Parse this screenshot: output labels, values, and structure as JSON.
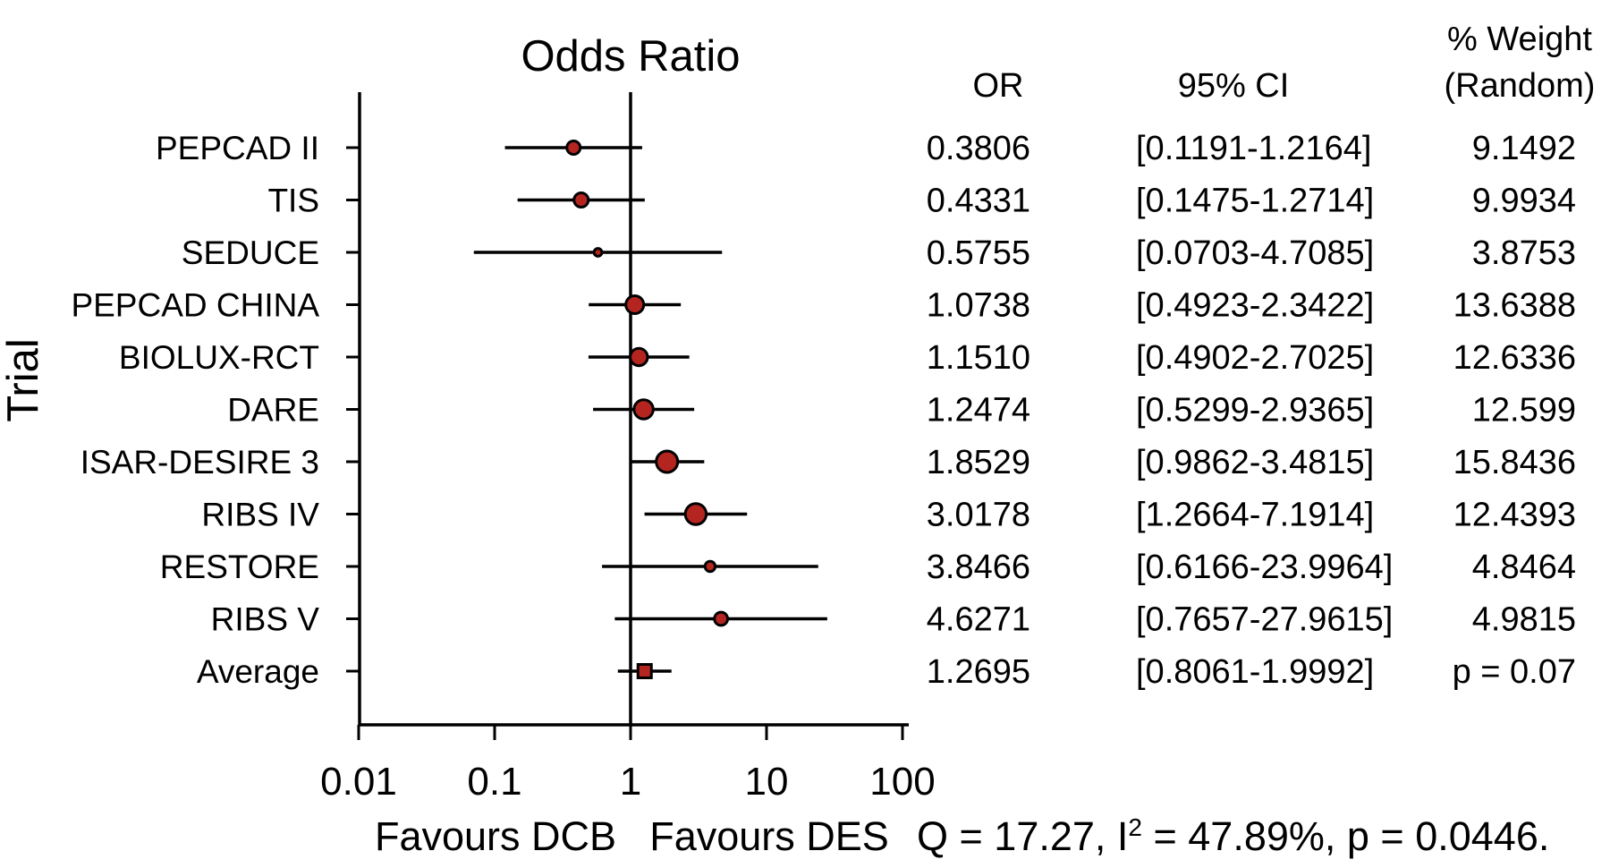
{
  "chart_data": {
    "type": "scatter",
    "subtype": "forest-plot",
    "title": "Odds Ratio",
    "y_axis_label": "Trial",
    "x_axis": {
      "scale": "log10",
      "range": [
        0.01,
        100
      ],
      "tick_values": [
        0.01,
        0.1,
        1,
        10,
        100
      ],
      "tick_labels": [
        "0.01",
        "0.1",
        "1",
        "10",
        "100"
      ],
      "reference_line_at": 1
    },
    "direction_labels": {
      "left": "Favours DCB",
      "right": "Favours DES"
    },
    "columns": {
      "or_header": "OR",
      "ci_header": "95% CI",
      "weight_header_line1": "% Weight",
      "weight_header_line2": "(Random)"
    },
    "rows": [
      {
        "trial": "PEPCAD II",
        "or": 0.3806,
        "or_text": "0.3806",
        "ci_low": 0.1191,
        "ci_high": 1.2164,
        "ci_text": "[0.1191-1.2164]",
        "weight_text": "9.1492",
        "weight": 9.1492,
        "marker": "circle",
        "marker_r": 7.5
      },
      {
        "trial": "TIS",
        "or": 0.4331,
        "or_text": "0.4331",
        "ci_low": 0.1475,
        "ci_high": 1.2714,
        "ci_text": "[0.1475-1.2714]",
        "weight_text": "9.9934",
        "weight": 9.9934,
        "marker": "circle",
        "marker_r": 8
      },
      {
        "trial": "SEDUCE",
        "or": 0.5755,
        "or_text": "0.5755",
        "ci_low": 0.0703,
        "ci_high": 4.7085,
        "ci_text": "[0.0703-4.7085]",
        "weight_text": "3.8753",
        "weight": 3.8753,
        "marker": "circle",
        "marker_r": 4.4
      },
      {
        "trial": "PEPCAD CHINA",
        "or": 1.0738,
        "or_text": "1.0738",
        "ci_low": 0.4923,
        "ci_high": 2.3422,
        "ci_text": "[0.4923-2.3422]",
        "weight_text": "13.6388",
        "weight": 13.6388,
        "marker": "circle",
        "marker_r": 10
      },
      {
        "trial": "BIOLUX-RCT",
        "or": 1.151,
        "or_text": "1.1510",
        "ci_low": 0.4902,
        "ci_high": 2.7025,
        "ci_text": "[0.4902-2.7025]",
        "weight_text": "12.6336",
        "weight": 12.6336,
        "marker": "circle",
        "marker_r": 9.7
      },
      {
        "trial": "DARE",
        "or": 1.2474,
        "or_text": "1.2474",
        "ci_low": 0.5299,
        "ci_high": 2.9365,
        "ci_text": "[0.5299-2.9365]",
        "weight_text": "12.599",
        "weight": 12.599,
        "marker": "circle",
        "marker_r": 10.7
      },
      {
        "trial": "ISAR-DESIRE 3",
        "or": 1.8529,
        "or_text": "1.8529",
        "ci_low": 0.9862,
        "ci_high": 3.4815,
        "ci_text": "[0.9862-3.4815]",
        "weight_text": "15.8436",
        "weight": 15.8436,
        "marker": "circle",
        "marker_r": 12
      },
      {
        "trial": "RIBS IV",
        "or": 3.0178,
        "or_text": "3.0178",
        "ci_low": 1.2664,
        "ci_high": 7.1914,
        "ci_text": "[1.2664-7.1914]",
        "weight_text": "12.4393",
        "weight": 12.4393,
        "marker": "circle",
        "marker_r": 11.7
      },
      {
        "trial": "RESTORE",
        "or": 3.8466,
        "or_text": "3.8466",
        "ci_low": 0.6166,
        "ci_high": 23.9964,
        "ci_text": "[0.6166-23.9964]",
        "weight_text": "4.8464",
        "weight": 4.8464,
        "marker": "circle",
        "marker_r": 5.7
      },
      {
        "trial": "RIBS V",
        "or": 4.6271,
        "or_text": "4.6271",
        "ci_low": 0.7657,
        "ci_high": 27.9615,
        "ci_text": "[0.7657-27.9615]",
        "weight_text": "4.9815",
        "weight": 4.9815,
        "marker": "circle",
        "marker_r": 7.4
      },
      {
        "trial": "Average",
        "or": 1.2695,
        "or_text": "1.2695",
        "ci_low": 0.8061,
        "ci_high": 1.9992,
        "ci_text": "[0.8061-1.9992]",
        "weight_text": "p = 0.07",
        "weight": null,
        "marker": "square",
        "marker_r": 7.5
      }
    ],
    "heterogeneity": {
      "prefix": "Q = 17.27, I",
      "sup": "2",
      "suffix": " = 47.89%, p = 0.0446."
    },
    "colors": {
      "marker_fill": "#b52520",
      "marker_stroke": "#000000",
      "line": "#000000",
      "text": "#000000",
      "background": "#ffffff"
    },
    "legend": "none",
    "grid": false
  }
}
